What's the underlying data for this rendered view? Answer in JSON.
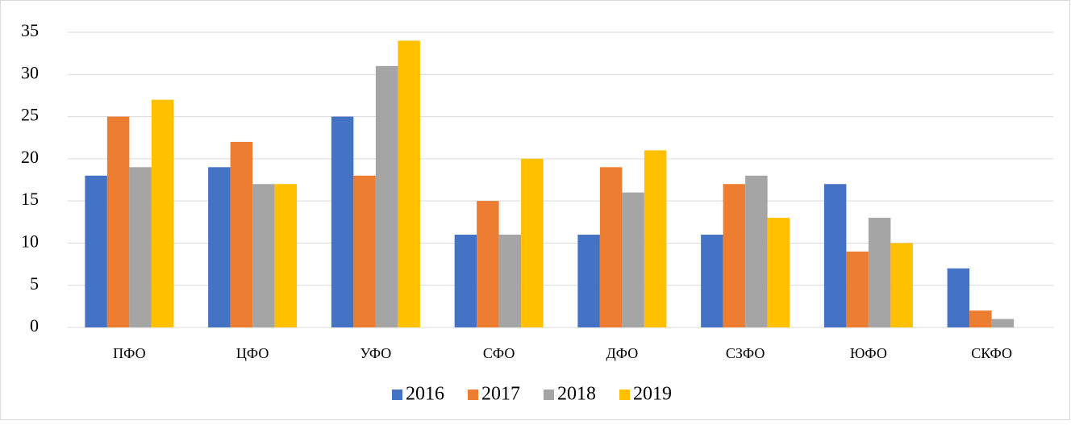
{
  "chart_data": {
    "type": "bar",
    "categories": [
      "ПФО",
      "ЦФО",
      "УФО",
      "СФО",
      "ДФО",
      "СЗФО",
      "ЮФО",
      "СКФО"
    ],
    "series": [
      {
        "name": "2016",
        "color": "#4472c4",
        "values": [
          18,
          19,
          25,
          11,
          11,
          11,
          17,
          7
        ]
      },
      {
        "name": "2017",
        "color": "#ed7d31",
        "values": [
          25,
          22,
          18,
          15,
          19,
          17,
          9,
          2
        ]
      },
      {
        "name": "2018",
        "color": "#a5a5a5",
        "values": [
          19,
          17,
          31,
          11,
          16,
          18,
          13,
          1
        ]
      },
      {
        "name": "2019",
        "color": "#ffc000",
        "values": [
          27,
          17,
          34,
          20,
          21,
          13,
          10,
          0
        ]
      }
    ],
    "ylim": [
      0,
      35
    ],
    "yticks": [
      0,
      5,
      10,
      15,
      20,
      25,
      30,
      35
    ],
    "grid": true,
    "legend": "bottom"
  }
}
